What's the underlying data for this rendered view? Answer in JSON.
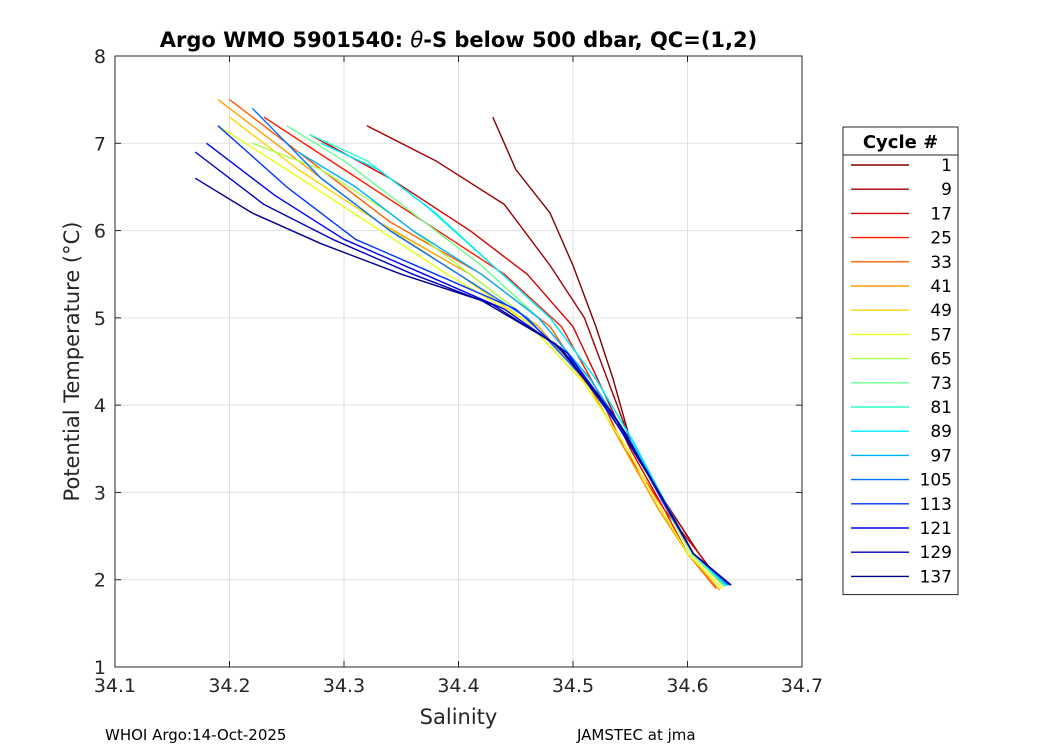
{
  "chart_data": {
    "type": "line",
    "title_prefix": "Argo WMO 5901540: ",
    "title_theta": "θ",
    "title_suffix": "-S below 500 dbar,  QC=(1,2)",
    "xlabel": "Salinity",
    "ylabel": "Potential Temperature (°C)",
    "xlim": [
      34.1,
      34.7
    ],
    "ylim": [
      1,
      8
    ],
    "xticks": [
      "34.1",
      "34.2",
      "34.3",
      "34.4",
      "34.5",
      "34.6",
      "34.7"
    ],
    "yticks": [
      "1",
      "2",
      "3",
      "4",
      "5",
      "6",
      "7",
      "8"
    ],
    "grid": true,
    "legend": {
      "title": "Cycle #",
      "position": "right",
      "entries": [
        {
          "label": "1",
          "color": "#800000"
        },
        {
          "label": "9",
          "color": "#a30000"
        },
        {
          "label": "17",
          "color": "#d40000"
        },
        {
          "label": "25",
          "color": "#ff1a00"
        },
        {
          "label": "33",
          "color": "#ff5c00"
        },
        {
          "label": "41",
          "color": "#ff9e00"
        },
        {
          "label": "49",
          "color": "#ffd500"
        },
        {
          "label": "57",
          "color": "#e6ff10"
        },
        {
          "label": "65",
          "color": "#a8ff4f"
        },
        {
          "label": "73",
          "color": "#6aff8d"
        },
        {
          "label": "81",
          "color": "#2effc9"
        },
        {
          "label": "89",
          "color": "#00eaff"
        },
        {
          "label": "97",
          "color": "#00b0ff"
        },
        {
          "label": "105",
          "color": "#0070ff"
        },
        {
          "label": "113",
          "color": "#0035ff"
        },
        {
          "label": "121",
          "color": "#0000f0"
        },
        {
          "label": "129",
          "color": "#0000b8"
        },
        {
          "label": "137",
          "color": "#00008f"
        }
      ]
    },
    "series": [
      {
        "name": "1",
        "color": "#800000",
        "salinity": [
          34.43,
          34.45,
          34.48,
          34.5,
          34.52,
          34.535,
          34.55,
          34.58,
          34.61,
          34.63
        ],
        "theta": [
          7.3,
          6.7,
          6.2,
          5.6,
          4.9,
          4.3,
          3.6,
          2.9,
          2.3,
          1.95
        ]
      },
      {
        "name": "9",
        "color": "#a30000",
        "salinity": [
          34.32,
          34.38,
          34.44,
          34.48,
          34.51,
          34.53,
          34.55,
          34.58,
          34.61,
          34.63
        ],
        "theta": [
          7.2,
          6.8,
          6.3,
          5.6,
          5.0,
          4.3,
          3.6,
          2.9,
          2.3,
          1.95
        ]
      },
      {
        "name": "17",
        "color": "#d40000",
        "salinity": [
          34.27,
          34.34,
          34.41,
          34.46,
          34.5,
          34.525,
          34.55,
          34.58,
          34.61,
          34.63
        ],
        "theta": [
          7.1,
          6.6,
          6.0,
          5.5,
          4.9,
          4.2,
          3.5,
          2.8,
          2.3,
          1.95
        ]
      },
      {
        "name": "25",
        "color": "#ff1a00",
        "salinity": [
          34.23,
          34.3,
          34.37,
          34.44,
          34.49,
          34.52,
          34.545,
          34.58,
          34.6,
          34.625
        ],
        "theta": [
          7.3,
          6.7,
          6.1,
          5.5,
          4.9,
          4.2,
          3.5,
          2.8,
          2.3,
          1.9
        ]
      },
      {
        "name": "33",
        "color": "#ff5c00",
        "salinity": [
          34.2,
          34.27,
          34.34,
          34.42,
          34.48,
          34.515,
          34.545,
          34.575,
          34.6,
          34.625
        ],
        "theta": [
          7.5,
          6.8,
          6.1,
          5.5,
          4.9,
          4.2,
          3.5,
          2.8,
          2.3,
          1.9
        ]
      },
      {
        "name": "41",
        "color": "#ff9e00",
        "salinity": [
          34.19,
          34.26,
          34.33,
          34.41,
          34.47,
          34.515,
          34.545,
          34.575,
          34.6,
          34.628
        ],
        "theta": [
          7.5,
          6.8,
          6.1,
          5.5,
          4.9,
          4.2,
          3.5,
          2.8,
          2.3,
          1.88
        ]
      },
      {
        "name": "49",
        "color": "#ffd500",
        "salinity": [
          34.2,
          34.26,
          34.33,
          34.4,
          34.46,
          34.51,
          34.545,
          34.575,
          34.6,
          34.63
        ],
        "theta": [
          7.3,
          6.7,
          6.1,
          5.5,
          4.95,
          4.25,
          3.55,
          2.85,
          2.3,
          1.9
        ]
      },
      {
        "name": "57",
        "color": "#e6ff10",
        "salinity": [
          34.19,
          34.25,
          34.32,
          34.39,
          34.46,
          34.51,
          34.545,
          34.575,
          34.6,
          34.63
        ],
        "theta": [
          7.2,
          6.7,
          6.1,
          5.5,
          4.95,
          4.25,
          3.55,
          2.85,
          2.3,
          1.9
        ]
      },
      {
        "name": "65",
        "color": "#a8ff4f",
        "salinity": [
          34.22,
          34.28,
          34.34,
          34.4,
          34.46,
          34.51,
          34.548,
          34.578,
          34.603,
          34.632
        ],
        "theta": [
          7.0,
          6.7,
          6.2,
          5.6,
          5.0,
          4.3,
          3.6,
          2.9,
          2.3,
          1.92
        ]
      },
      {
        "name": "73",
        "color": "#6aff8d",
        "salinity": [
          34.25,
          34.3,
          34.36,
          34.42,
          34.47,
          34.515,
          34.55,
          34.58,
          34.605,
          34.633
        ],
        "theta": [
          7.2,
          6.8,
          6.2,
          5.6,
          5.0,
          4.3,
          3.6,
          2.9,
          2.3,
          1.93
        ]
      },
      {
        "name": "81",
        "color": "#2effc9",
        "salinity": [
          34.27,
          34.32,
          34.37,
          34.43,
          34.48,
          34.52,
          34.552,
          34.58,
          34.605,
          34.633
        ],
        "theta": [
          7.1,
          6.8,
          6.3,
          5.6,
          5.0,
          4.3,
          3.6,
          2.9,
          2.3,
          1.93
        ]
      },
      {
        "name": "89",
        "color": "#00eaff",
        "salinity": [
          34.28,
          34.33,
          34.38,
          34.43,
          34.48,
          34.52,
          34.552,
          34.58,
          34.605,
          34.634
        ],
        "theta": [
          7.0,
          6.7,
          6.2,
          5.6,
          5.0,
          4.3,
          3.6,
          2.9,
          2.3,
          1.93
        ]
      },
      {
        "name": "97",
        "color": "#00b0ff",
        "salinity": [
          34.26,
          34.31,
          34.36,
          34.42,
          34.47,
          34.515,
          34.55,
          34.58,
          34.605,
          34.635
        ],
        "theta": [
          6.9,
          6.5,
          6.0,
          5.5,
          5.0,
          4.3,
          3.6,
          2.9,
          2.3,
          1.94
        ]
      },
      {
        "name": "105",
        "color": "#0070ff",
        "salinity": [
          34.22,
          34.28,
          34.34,
          34.4,
          34.46,
          34.51,
          34.548,
          34.58,
          34.605,
          34.636
        ],
        "theta": [
          7.4,
          6.6,
          6.0,
          5.5,
          5.0,
          4.3,
          3.6,
          2.9,
          2.3,
          1.94
        ]
      },
      {
        "name": "113",
        "color": "#0035ff",
        "salinity": [
          34.19,
          34.25,
          34.31,
          34.38,
          34.45,
          34.5,
          34.545,
          34.578,
          34.605,
          34.637
        ],
        "theta": [
          7.2,
          6.5,
          5.9,
          5.5,
          5.1,
          4.5,
          3.7,
          2.9,
          2.3,
          1.94
        ]
      },
      {
        "name": "121",
        "color": "#0000f0",
        "salinity": [
          34.18,
          34.24,
          34.3,
          34.37,
          34.44,
          34.495,
          34.54,
          34.577,
          34.605,
          34.638
        ],
        "theta": [
          7.0,
          6.4,
          5.9,
          5.5,
          5.1,
          4.6,
          3.8,
          2.95,
          2.3,
          1.94
        ]
      },
      {
        "name": "129",
        "color": "#0000b8",
        "salinity": [
          34.17,
          34.23,
          34.29,
          34.36,
          34.43,
          34.49,
          34.535,
          34.575,
          34.605,
          34.638
        ],
        "theta": [
          6.9,
          6.3,
          5.9,
          5.5,
          5.15,
          4.65,
          3.85,
          3.0,
          2.3,
          1.94
        ]
      },
      {
        "name": "137",
        "color": "#00008f",
        "salinity": [
          34.17,
          34.22,
          34.28,
          34.35,
          34.42,
          34.485,
          34.535,
          34.575,
          34.605,
          34.638
        ],
        "theta": [
          6.6,
          6.2,
          5.85,
          5.5,
          5.2,
          4.7,
          3.9,
          3.0,
          2.3,
          1.94
        ]
      }
    ]
  },
  "footer": {
    "left": "WHOI Argo:14-Oct-2025",
    "right": "JAMSTEC at jma"
  }
}
